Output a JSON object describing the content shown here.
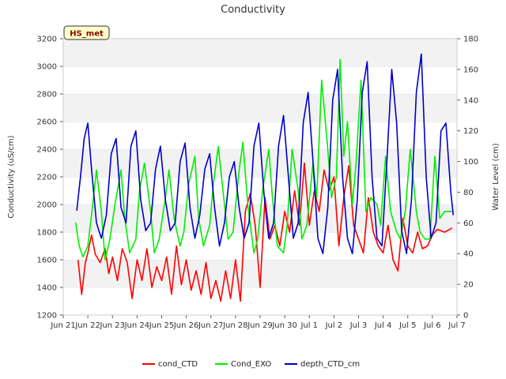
{
  "chart_data": {
    "type": "line",
    "title": "Conductivity",
    "station_label": "HS_met",
    "ylabel": "Conductivity (uS/cm)",
    "y2label": "Water Level (cm)",
    "ylim": [
      1200,
      3200
    ],
    "y2lim": [
      0,
      180
    ],
    "yticks": [
      1200,
      1400,
      1600,
      1800,
      2000,
      2200,
      2400,
      2600,
      2800,
      3000,
      3200
    ],
    "y2ticks": [
      0,
      20,
      40,
      60,
      80,
      100,
      120,
      140,
      160,
      180
    ],
    "xlim": [
      0,
      16
    ],
    "xticks": [
      0,
      1,
      2,
      3,
      4,
      5,
      6,
      7,
      8,
      9,
      10,
      11,
      12,
      13,
      14,
      15,
      16
    ],
    "xticklabels": [
      "Jun 21",
      "Jun 22",
      "Jun 23",
      "Jun 24",
      "Jun 25",
      "Jun 26",
      "Jun 27",
      "Jun 28",
      "Jun 29",
      "Jun 30",
      "Jul 1",
      "Jul 2",
      "Jul 3",
      "Jul 4",
      "Jul 5",
      "Jul 6",
      "Jul 7"
    ],
    "grid": "horizontal-bands",
    "legend_position": "bottom",
    "series": [
      {
        "name": "cond_CTD",
        "color": "#ff0000",
        "axis": "left",
        "x": [
          0.6,
          0.75,
          0.9,
          1.0,
          1.15,
          1.3,
          1.5,
          1.7,
          1.85,
          2.0,
          2.2,
          2.4,
          2.6,
          2.8,
          3.0,
          3.2,
          3.4,
          3.6,
          3.8,
          4.0,
          4.2,
          4.4,
          4.6,
          4.8,
          5.0,
          5.2,
          5.4,
          5.6,
          5.8,
          6.0,
          6.2,
          6.4,
          6.6,
          6.8,
          7.0,
          7.2,
          7.4,
          7.6,
          7.8,
          8.0,
          8.2,
          8.4,
          8.6,
          8.8,
          9.0,
          9.2,
          9.4,
          9.6,
          9.8,
          10.0,
          10.2,
          10.4,
          10.6,
          10.8,
          11.0,
          11.2,
          11.4,
          11.6,
          11.8,
          12.0,
          12.2,
          12.4,
          12.6,
          12.8,
          13.0,
          13.2,
          13.4,
          13.6,
          13.8,
          14.0,
          14.2,
          14.4,
          14.6,
          14.8,
          15.0,
          15.2,
          15.5,
          15.8
        ],
        "values": [
          1600,
          1350,
          1580,
          1650,
          1780,
          1640,
          1580,
          1680,
          1500,
          1620,
          1450,
          1680,
          1580,
          1320,
          1600,
          1450,
          1680,
          1400,
          1550,
          1450,
          1620,
          1350,
          1700,
          1420,
          1600,
          1380,
          1520,
          1350,
          1580,
          1320,
          1450,
          1300,
          1520,
          1320,
          1600,
          1300,
          1950,
          2080,
          1850,
          1400,
          2050,
          1750,
          1850,
          1700,
          1950,
          1800,
          2100,
          1850,
          2300,
          1850,
          2100,
          1950,
          2250,
          2100,
          2200,
          1700,
          2050,
          2280,
          1850,
          1750,
          1650,
          2050,
          1800,
          1700,
          1650,
          1850,
          1600,
          1520,
          1900,
          1700,
          1650,
          1800,
          1680,
          1700,
          1780,
          1820,
          1800,
          1830
        ]
      },
      {
        "name": "Cond_EXO",
        "color": "#00ee00",
        "axis": "left",
        "x": [
          0.5,
          0.65,
          0.8,
          1.0,
          1.2,
          1.35,
          1.55,
          1.7,
          1.9,
          2.1,
          2.35,
          2.5,
          2.7,
          2.95,
          3.1,
          3.3,
          3.55,
          3.7,
          3.9,
          4.15,
          4.3,
          4.5,
          4.75,
          4.9,
          5.1,
          5.35,
          5.5,
          5.7,
          5.95,
          6.1,
          6.3,
          6.55,
          6.7,
          6.9,
          7.15,
          7.3,
          7.5,
          7.75,
          7.9,
          8.1,
          8.35,
          8.5,
          8.7,
          8.95,
          9.1,
          9.3,
          9.55,
          9.7,
          9.9,
          10.15,
          10.3,
          10.5,
          10.75,
          10.9,
          11.1,
          11.25,
          11.4,
          11.55,
          11.75,
          11.9,
          12.1,
          12.3,
          12.5,
          12.75,
          12.9,
          13.1,
          13.3,
          13.55,
          13.7,
          13.9,
          14.1,
          14.35,
          14.5,
          14.7,
          14.9,
          15.1,
          15.3,
          15.5,
          15.8
        ],
        "values": [
          1870,
          1700,
          1620,
          1700,
          2000,
          2250,
          1950,
          1600,
          1750,
          2000,
          2250,
          1900,
          1650,
          1750,
          2100,
          2300,
          1950,
          1650,
          1750,
          2050,
          2250,
          1900,
          1700,
          1800,
          2150,
          2350,
          1900,
          1700,
          1850,
          2150,
          2420,
          2000,
          1750,
          1800,
          2250,
          2450,
          2000,
          1650,
          1750,
          2100,
          2400,
          2050,
          1700,
          1650,
          1850,
          2400,
          2100,
          1750,
          1850,
          2300,
          2050,
          2900,
          2400,
          2050,
          2200,
          3050,
          2350,
          2600,
          2000,
          2300,
          2900,
          1950,
          2050,
          2000,
          1850,
          2350,
          1950,
          1800,
          1750,
          1950,
          2400,
          1950,
          1800,
          1750,
          1750,
          2350,
          1900,
          1950,
          1950
        ]
      },
      {
        "name": "depth_CTD_cm",
        "color": "#0000cc",
        "axis": "right",
        "x": [
          0.55,
          0.7,
          0.85,
          1.0,
          1.15,
          1.35,
          1.55,
          1.75,
          1.95,
          2.15,
          2.35,
          2.55,
          2.75,
          2.95,
          3.15,
          3.35,
          3.55,
          3.75,
          3.95,
          4.15,
          4.35,
          4.55,
          4.75,
          4.95,
          5.15,
          5.35,
          5.55,
          5.75,
          5.95,
          6.15,
          6.35,
          6.55,
          6.75,
          6.95,
          7.15,
          7.35,
          7.55,
          7.75,
          7.95,
          8.15,
          8.35,
          8.55,
          8.75,
          8.95,
          9.15,
          9.35,
          9.55,
          9.75,
          9.95,
          10.15,
          10.35,
          10.55,
          10.75,
          10.95,
          11.15,
          11.35,
          11.55,
          11.75,
          11.95,
          12.15,
          12.35,
          12.55,
          12.75,
          12.95,
          13.15,
          13.35,
          13.55,
          13.75,
          13.95,
          14.15,
          14.35,
          14.55,
          14.75,
          14.95,
          15.15,
          15.35,
          15.55,
          15.75,
          15.85
        ],
        "values": [
          68,
          90,
          115,
          125,
          95,
          60,
          50,
          65,
          105,
          115,
          70,
          60,
          110,
          120,
          75,
          55,
          60,
          95,
          110,
          75,
          55,
          60,
          100,
          112,
          70,
          50,
          65,
          95,
          105,
          70,
          45,
          60,
          90,
          100,
          70,
          50,
          60,
          110,
          125,
          80,
          50,
          60,
          110,
          130,
          90,
          50,
          60,
          125,
          145,
          100,
          50,
          40,
          70,
          140,
          160,
          90,
          50,
          40,
          75,
          145,
          165,
          90,
          50,
          45,
          100,
          160,
          125,
          55,
          40,
          75,
          145,
          170,
          90,
          50,
          60,
          120,
          125,
          80,
          65
        ]
      }
    ]
  }
}
